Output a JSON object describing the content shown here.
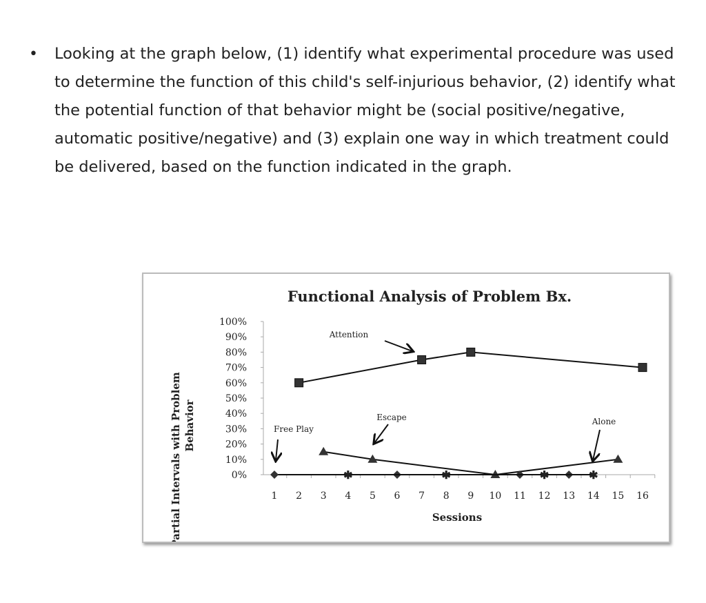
{
  "question": {
    "bullet": "•",
    "text": "Looking at the graph below, (1) identify what experimental procedure was used to determine the function of this child's self-injurious behavior, (2) identify what the potential function of that behavior might be (social positive/negative, automatic positive/negative) and (3) explain one way in which treatment could be delivered, based on the function indicated in the graph."
  },
  "chart_data": {
    "type": "line",
    "title": "Functional Analysis of Problem Bx.",
    "xlabel": "Sessions",
    "ylabel_line1": "% of Partial Intervals with Problem",
    "ylabel_line2": "Behavior",
    "x": [
      1,
      2,
      3,
      4,
      5,
      6,
      7,
      8,
      9,
      10,
      11,
      12,
      13,
      14,
      15,
      16
    ],
    "xticks": [
      "1",
      "2",
      "3",
      "4",
      "5",
      "6",
      "7",
      "8",
      "9",
      "10",
      "11",
      "12",
      "13",
      "14",
      "15",
      "16"
    ],
    "yticks": [
      "0%",
      "10%",
      "20%",
      "30%",
      "40%",
      "50%",
      "60%",
      "70%",
      "80%",
      "90%",
      "100%"
    ],
    "ylim": [
      0,
      100
    ],
    "series": [
      {
        "name": "Attention",
        "marker": "square",
        "x": [
          2,
          7,
          9,
          16
        ],
        "values": [
          60,
          75,
          80,
          70
        ]
      },
      {
        "name": "Escape",
        "marker": "triangle",
        "x": [
          3,
          5,
          10,
          15
        ],
        "values": [
          15,
          10,
          0,
          10
        ]
      },
      {
        "name": "Free Play",
        "marker": "diamond",
        "x": [
          1,
          6,
          11,
          13
        ],
        "values": [
          0,
          0,
          0,
          0
        ]
      },
      {
        "name": "Alone",
        "marker": "star",
        "x": [
          4,
          8,
          12,
          14
        ],
        "values": [
          0,
          0,
          0,
          0
        ]
      }
    ],
    "annotations": [
      "Attention",
      "Escape",
      "Free Play",
      "Alone"
    ]
  }
}
